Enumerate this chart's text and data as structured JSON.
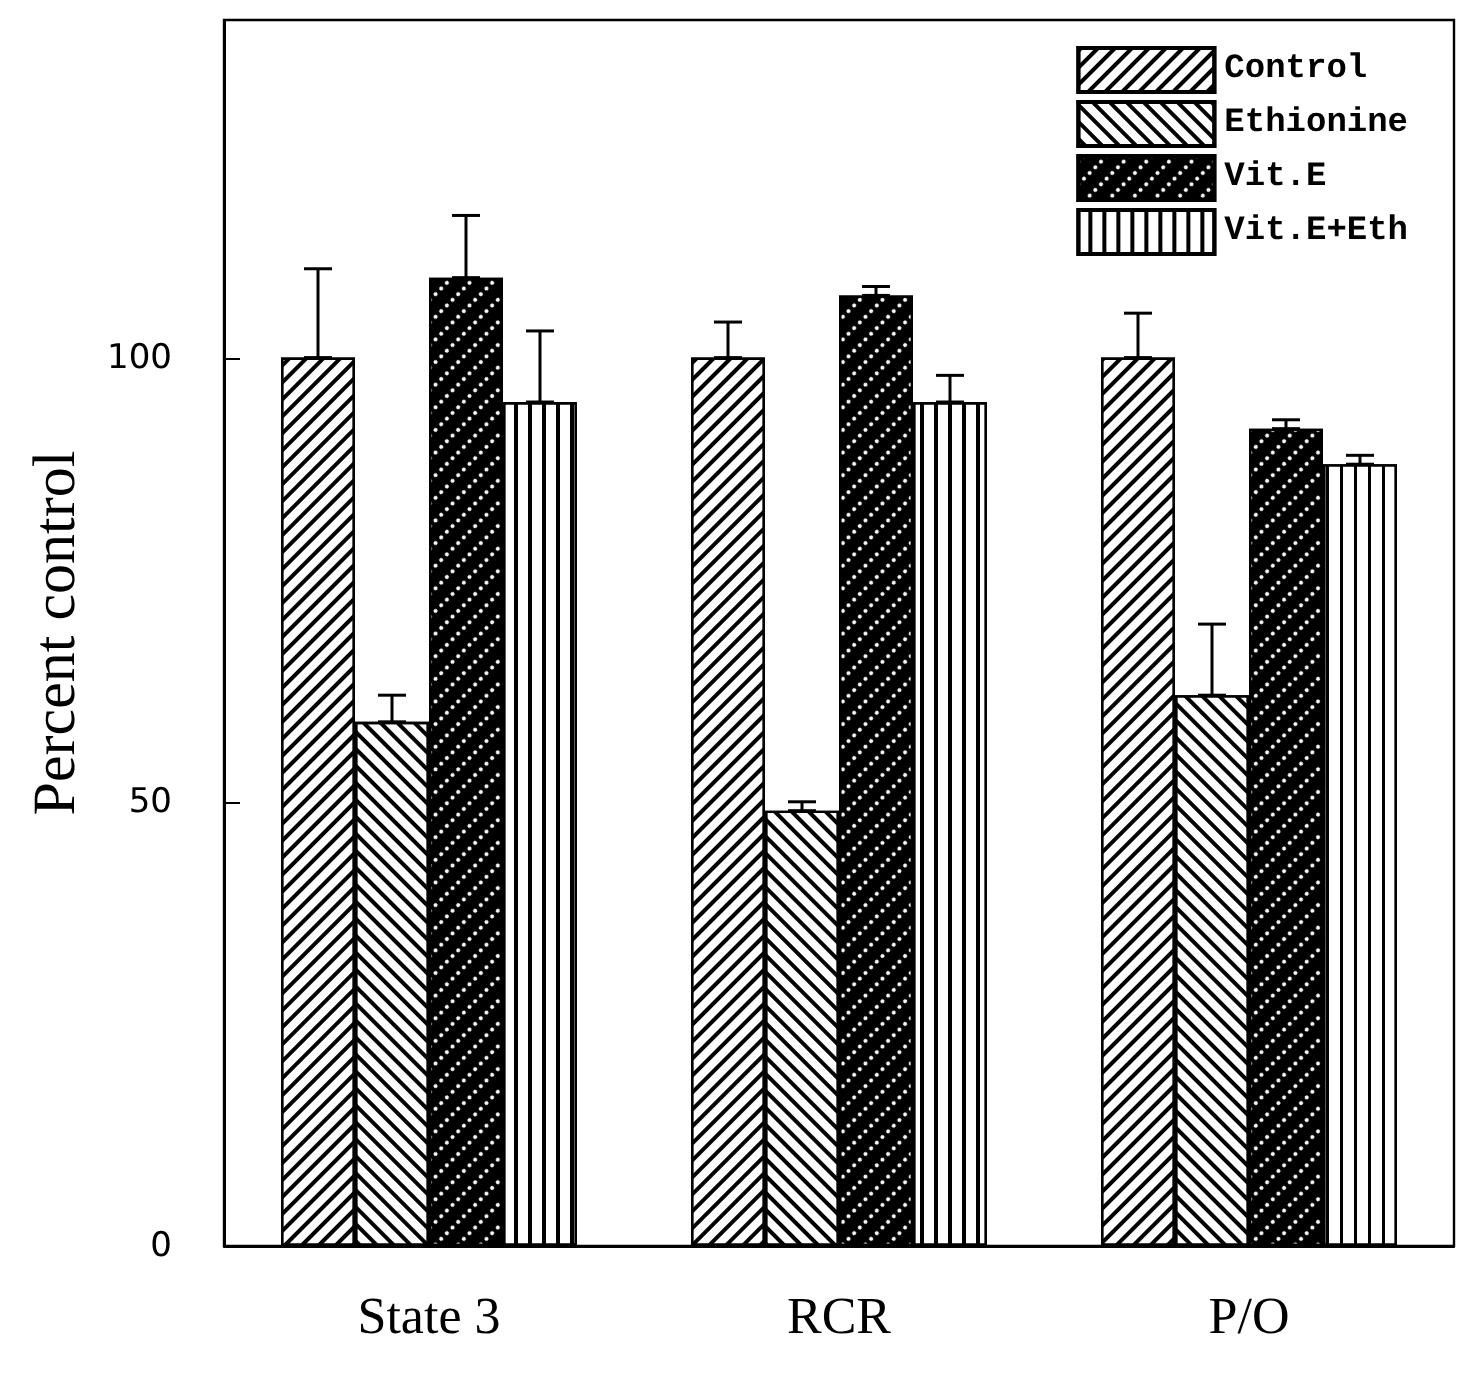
{
  "chart_data": {
    "type": "bar",
    "ylabel": "Percent control",
    "categories": [
      "State 3",
      "RCR",
      "P/O"
    ],
    "series": [
      {
        "name": "Control",
        "color": "#000000",
        "values": [
          100,
          100,
          100
        ],
        "errors": [
          [
            100,
            110
          ],
          [
            100,
            104
          ],
          [
            100,
            105
          ]
        ]
      },
      {
        "name": "Ethionine",
        "color": "#000000",
        "values": [
          59,
          49,
          62
        ],
        "errors": [
          [
            59,
            62
          ],
          [
            49,
            50
          ],
          [
            62,
            70
          ]
        ]
      },
      {
        "name": "Vit.E",
        "color": "#000000",
        "values": [
          109,
          107,
          92
        ],
        "errors": [
          [
            109,
            116
          ],
          [
            107,
            108
          ],
          [
            92,
            93
          ]
        ]
      },
      {
        "name": "Vit.E+Eth",
        "color": "#000000",
        "values": [
          95,
          95,
          88
        ],
        "errors": [
          [
            95,
            103
          ],
          [
            95,
            98
          ],
          [
            88,
            89
          ]
        ]
      }
    ],
    "ylim": [
      0,
      138
    ],
    "yticks": [
      0,
      50,
      100
    ],
    "grid": false,
    "legend": "top right"
  }
}
